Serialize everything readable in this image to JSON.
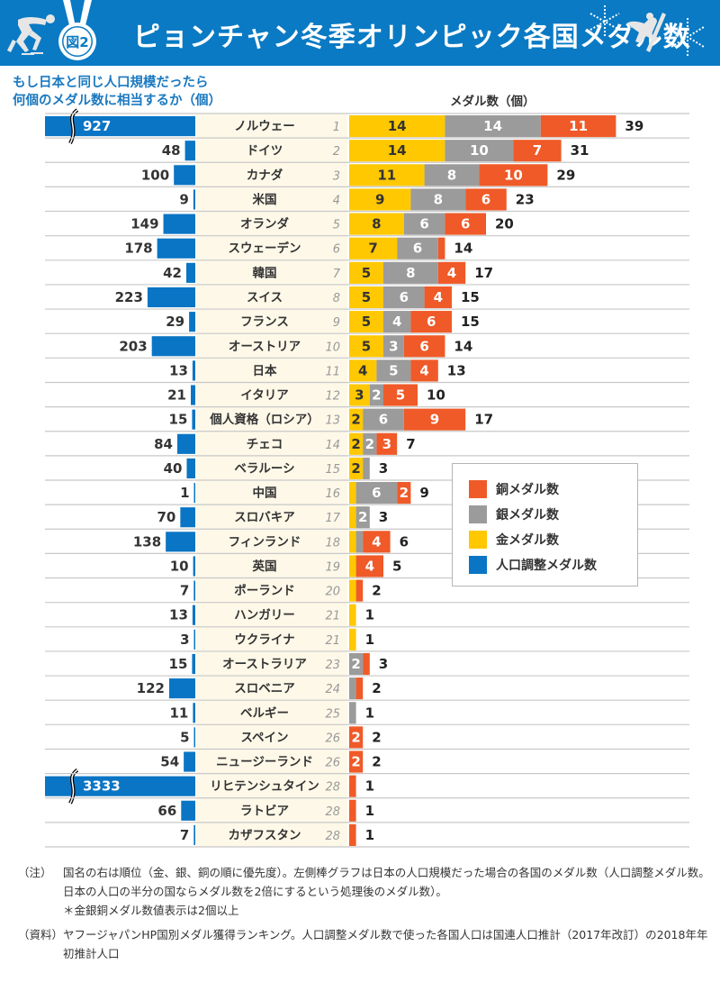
{
  "header": {
    "badge_label": "図2",
    "title": "ピョンチャン冬季オリンピック各国メダル数"
  },
  "subtitle": {
    "line1": "もし日本と同じ人口規模だったら",
    "line2": "何個のメダル数に相当するか（個）"
  },
  "medal_axis_label": "メダル数（個）",
  "legend": [
    {
      "label": "銅メダル数",
      "color": "#ef5a28"
    },
    {
      "label": "銀メダル数",
      "color": "#9b9b9b"
    },
    {
      "label": "金メダル数",
      "color": "#ffc800"
    },
    {
      "label": "人口調整メダル数",
      "color": "#0a75c4"
    }
  ],
  "colors": {
    "gold": "#ffc800",
    "silver": "#9b9b9b",
    "bronze": "#ef5a28",
    "population_adjusted": "#0a75c4",
    "header_bg": "#0a7ac4",
    "country_col_bg": "#fdf8e8",
    "subtitle": "#1a79c0"
  },
  "chart_data": {
    "type": "bar",
    "title": "ピョンチャン冬季オリンピック各国メダル数",
    "left_panel_title": "もし日本と同じ人口規模だったら何個のメダル数に相当するか（個）",
    "right_panel_title": "メダル数（個）",
    "orientation": "horizontal",
    "stacked": true,
    "label_threshold_note": "金銀銅メダル数値表示は2個以上",
    "broken_axis_countries": [
      "ノルウェー",
      "リヒテンシュタイン"
    ],
    "categories": [
      "ノルウェー",
      "ドイツ",
      "カナダ",
      "米国",
      "オランダ",
      "スウェーデン",
      "韓国",
      "スイス",
      "フランス",
      "オーストリア",
      "日本",
      "イタリア",
      "個人資格（ロシア）",
      "チェコ",
      "ベラルーシ",
      "中国",
      "スロバキア",
      "フィンランド",
      "英国",
      "ポーランド",
      "ハンガリー",
      "ウクライナ",
      "オーストラリア",
      "スロベニア",
      "ベルギー",
      "スペイン",
      "ニュージーランド",
      "リヒテンシュタイン",
      "ラトビア",
      "カザフスタン"
    ],
    "ranks": [
      1,
      2,
      3,
      4,
      5,
      6,
      7,
      8,
      9,
      10,
      11,
      12,
      13,
      14,
      15,
      16,
      17,
      18,
      19,
      20,
      21,
      21,
      23,
      24,
      25,
      26,
      26,
      28,
      28,
      28
    ],
    "series": [
      {
        "name": "金メダル数",
        "values": [
          14,
          14,
          11,
          9,
          8,
          7,
          5,
          5,
          5,
          5,
          4,
          3,
          2,
          2,
          2,
          1,
          1,
          1,
          1,
          1,
          1,
          1,
          0,
          0,
          0,
          0,
          0,
          0,
          0,
          0
        ]
      },
      {
        "name": "銀メダル数",
        "values": [
          14,
          10,
          8,
          8,
          6,
          6,
          8,
          6,
          4,
          3,
          5,
          2,
          6,
          2,
          1,
          6,
          2,
          1,
          0,
          0,
          0,
          0,
          2,
          1,
          1,
          0,
          0,
          0,
          0,
          0
        ]
      },
      {
        "name": "銅メダル数",
        "values": [
          11,
          7,
          10,
          6,
          6,
          1,
          4,
          4,
          6,
          6,
          4,
          5,
          9,
          3,
          0,
          2,
          0,
          4,
          4,
          1,
          0,
          0,
          1,
          1,
          0,
          2,
          2,
          1,
          1,
          1
        ]
      },
      {
        "name": "人口調整メダル数",
        "values": [
          927,
          48,
          100,
          9,
          149,
          178,
          42,
          223,
          29,
          203,
          13,
          21,
          15,
          84,
          40,
          1,
          70,
          138,
          10,
          7,
          13,
          3,
          15,
          122,
          11,
          5,
          54,
          3333,
          66,
          7
        ]
      }
    ],
    "totals": [
      39,
      31,
      29,
      23,
      20,
      14,
      17,
      15,
      15,
      14,
      13,
      10,
      17,
      7,
      3,
      9,
      3,
      6,
      5,
      2,
      1,
      1,
      3,
      2,
      1,
      2,
      2,
      1,
      1,
      1
    ],
    "grid": true
  },
  "notes": [
    {
      "key": "（注）",
      "text": "国名の右は順位（金、銀、銅の順に優先度）。左側棒グラフは日本の人口規模だった場合の各国のメダル数（人口調整メダル数。日本の人口の半分の国ならメダル数を2倍にするという処理後のメダル数）。",
      "sub": "＊金銀銅メダル数値表示は2個以上"
    },
    {
      "key": "（資料）",
      "text": "ヤフージャパンHP国別メダル獲得ランキング。人口調整メダル数で使った各国人口は国連人口推計（2017年改訂）の2018年年初推計人口"
    }
  ]
}
